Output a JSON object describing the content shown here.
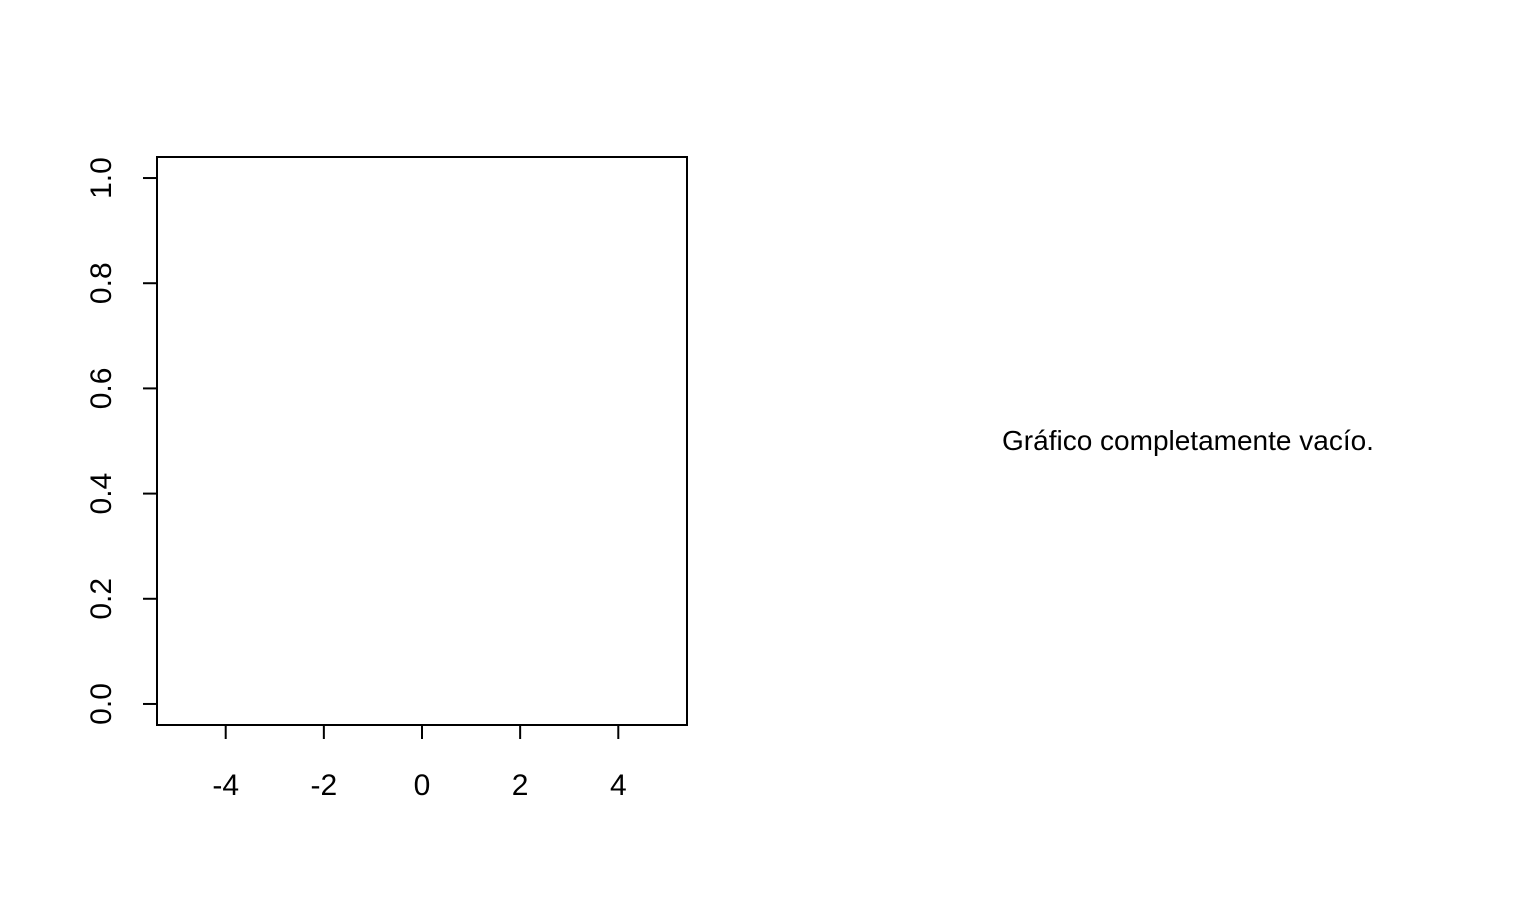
{
  "chart_data": [
    {
      "type": "scatter",
      "title": "",
      "xlabel": "",
      "ylabel": "",
      "xlim": [
        -5.4,
        5.4
      ],
      "ylim": [
        -0.04,
        1.04
      ],
      "x_ticks": [
        -4,
        -2,
        0,
        2,
        4
      ],
      "x_tick_labels": [
        "-4",
        "-2",
        "0",
        "2",
        "4"
      ],
      "y_ticks": [
        0,
        0.2,
        0.4,
        0.6,
        0.8,
        1.0
      ],
      "y_tick_labels": [
        "0.0",
        "0.2",
        "0.4",
        "0.6",
        "0.8",
        "1.0"
      ],
      "series": [],
      "grid": false,
      "legend": "none"
    }
  ],
  "annotation": {
    "text": "Gráfico completamente vacío."
  },
  "colors": {
    "background": "#ffffff",
    "foreground": "#000000"
  }
}
